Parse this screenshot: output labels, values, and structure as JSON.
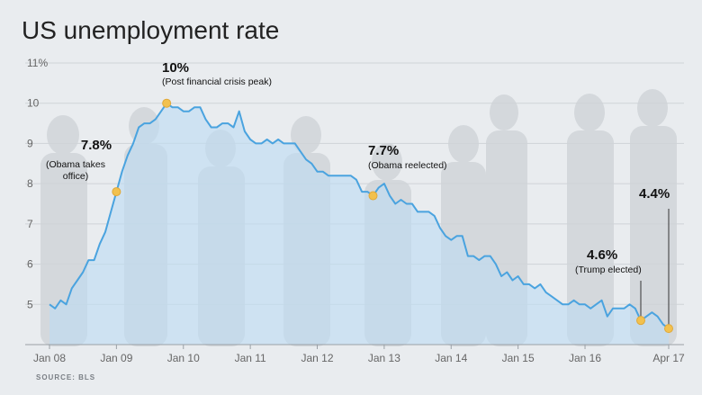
{
  "title": "US unemployment rate",
  "source": "SOURCE: BLS",
  "colors": {
    "line": "#4aa3df",
    "fill": "#bcdcf3",
    "marker": "#f2c14e",
    "background": "#e9ecef"
  },
  "chart_data": {
    "type": "area",
    "title": "US unemployment rate",
    "xlabel": "",
    "ylabel": "",
    "x_start": "Jan 2008",
    "x_end": "Apr 2017",
    "ylim": [
      4,
      11
    ],
    "y_ticks": [
      "11%",
      "10",
      "9",
      "8",
      "7",
      "6",
      "5"
    ],
    "x_ticks": [
      "Jan 08",
      "Jan 09",
      "Jan 10",
      "Jan 11",
      "Jan 12",
      "Jan 13",
      "Jan 14",
      "Jan 15",
      "Jan 16",
      "Apr 17"
    ],
    "grid": true,
    "series": [
      {
        "values": [
          5.0,
          4.9,
          5.1,
          5.0,
          5.4,
          5.6,
          5.8,
          6.1,
          6.1,
          6.5,
          6.8,
          7.3,
          7.8,
          8.3,
          8.7,
          9.0,
          9.4,
          9.5,
          9.5,
          9.6,
          9.8,
          10.0,
          9.9,
          9.9,
          9.8,
          9.8,
          9.9,
          9.9,
          9.6,
          9.4,
          9.4,
          9.5,
          9.5,
          9.4,
          9.8,
          9.3,
          9.1,
          9.0,
          9.0,
          9.1,
          9.0,
          9.1,
          9.0,
          9.0,
          9.0,
          8.8,
          8.6,
          8.5,
          8.3,
          8.3,
          8.2,
          8.2,
          8.2,
          8.2,
          8.2,
          8.1,
          7.8,
          7.8,
          7.7,
          7.9,
          8.0,
          7.7,
          7.5,
          7.6,
          7.5,
          7.5,
          7.3,
          7.3,
          7.3,
          7.2,
          6.9,
          6.7,
          6.6,
          6.7,
          6.7,
          6.2,
          6.2,
          6.1,
          6.2,
          6.2,
          6.0,
          5.7,
          5.8,
          5.6,
          5.7,
          5.5,
          5.5,
          5.4,
          5.5,
          5.3,
          5.2,
          5.1,
          5.0,
          5.0,
          5.1,
          5.0,
          5.0,
          4.9,
          5.0,
          5.1,
          4.7,
          4.9,
          4.9,
          4.9,
          5.0,
          4.9,
          4.6,
          4.7,
          4.8,
          4.7,
          4.5,
          4.4
        ]
      }
    ],
    "annotations": [
      {
        "index": 12,
        "value": "7.8%",
        "label": [
          "(Obama takes",
          "office)"
        ]
      },
      {
        "index": 21,
        "value": "10%",
        "label": [
          "(Post financial crisis peak)"
        ]
      },
      {
        "index": 58,
        "value": "7.7%",
        "label": [
          "(Obama reelected)"
        ]
      },
      {
        "index": 106,
        "value": "4.6%",
        "label": [
          "(Trump elected)"
        ]
      },
      {
        "index": 111,
        "value": "4.4%",
        "label": []
      }
    ]
  }
}
